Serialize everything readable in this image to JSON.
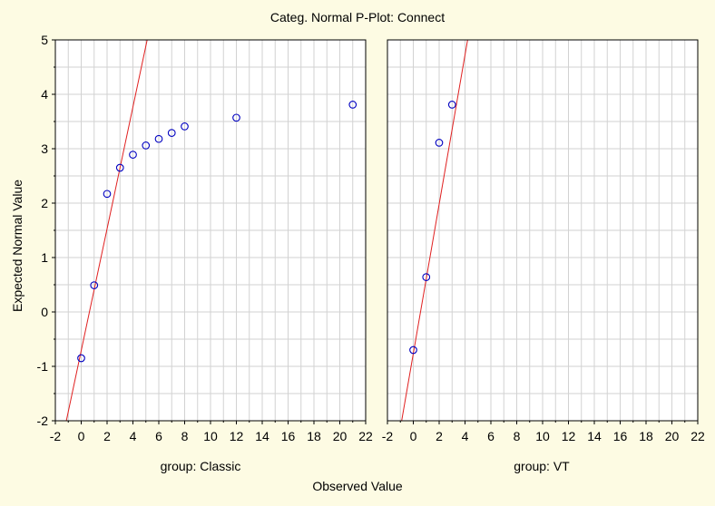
{
  "title": "Categ. Normal P-Plot:  Connect",
  "chart_data": {
    "type": "scatter",
    "title": "Categ. Normal P-Plot:  Connect",
    "xlabel": "Observed Value",
    "ylabel": "Expected Normal Value",
    "xlim": [
      -2,
      22
    ],
    "ylim": [
      -2,
      5
    ],
    "x_ticks": [
      "-2",
      "0",
      "2",
      "4",
      "6",
      "8",
      "10",
      "12",
      "14",
      "16",
      "18",
      "20",
      "22"
    ],
    "y_ticks": [
      "5",
      "4",
      "3",
      "2",
      "1",
      "0",
      "-1",
      "-2"
    ],
    "grid": true,
    "colors": {
      "points": "#0000c0",
      "fit_line": "#e02020",
      "background": "#fdfbe3",
      "plot_bg": "#ffffff"
    },
    "panels": [
      {
        "label": "group: Classic",
        "points": [
          {
            "x": 0,
            "y": -0.85
          },
          {
            "x": 1,
            "y": 0.49
          },
          {
            "x": 2,
            "y": 2.17
          },
          {
            "x": 3,
            "y": 2.65
          },
          {
            "x": 4,
            "y": 2.89
          },
          {
            "x": 5,
            "y": 3.06
          },
          {
            "x": 6,
            "y": 3.18
          },
          {
            "x": 7,
            "y": 3.29
          },
          {
            "x": 8,
            "y": 3.41
          },
          {
            "x": 12,
            "y": 3.57
          },
          {
            "x": 21,
            "y": 3.81
          }
        ],
        "fit_line": [
          {
            "x": -1.15,
            "y": -2
          },
          {
            "x": 5.1,
            "y": 5
          }
        ]
      },
      {
        "label": "group: VT",
        "points": [
          {
            "x": 0,
            "y": -0.7
          },
          {
            "x": 1,
            "y": 0.64
          },
          {
            "x": 2,
            "y": 3.11
          },
          {
            "x": 3,
            "y": 3.81
          }
        ],
        "fit_line": [
          {
            "x": -0.9,
            "y": -2
          },
          {
            "x": 4.2,
            "y": 5
          }
        ]
      }
    ]
  }
}
